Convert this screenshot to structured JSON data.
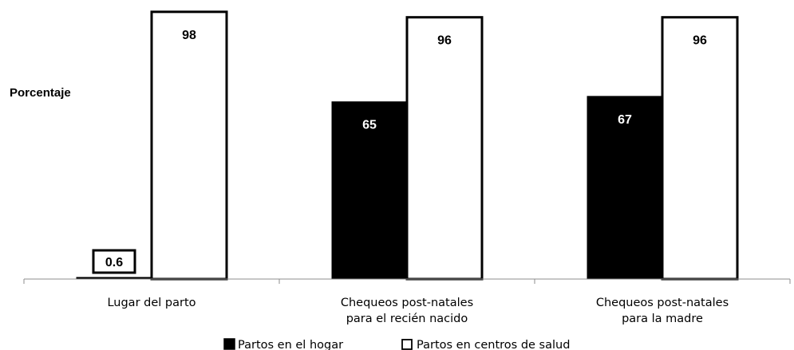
{
  "chart_data": {
    "type": "bar",
    "ylabel": "Porcentaje",
    "ylim": [
      0,
      100
    ],
    "grid": false,
    "legend_placement": "bottom",
    "categories": [
      [
        "Lugar del parto"
      ],
      [
        "Chequeos post-natales",
        "para el recién nacido"
      ],
      [
        "Chequeos post-natales",
        "para la madre"
      ]
    ],
    "series": [
      {
        "name": "Partos en el hogar",
        "color": "#000000",
        "values": [
          0.6,
          65,
          67
        ],
        "labels": [
          "0.6",
          "65",
          "67"
        ]
      },
      {
        "name": "Partos en centros de salud",
        "color": "#ffffff",
        "values": [
          98,
          96,
          96
        ],
        "labels": [
          "98",
          "96",
          "96"
        ]
      }
    ]
  }
}
